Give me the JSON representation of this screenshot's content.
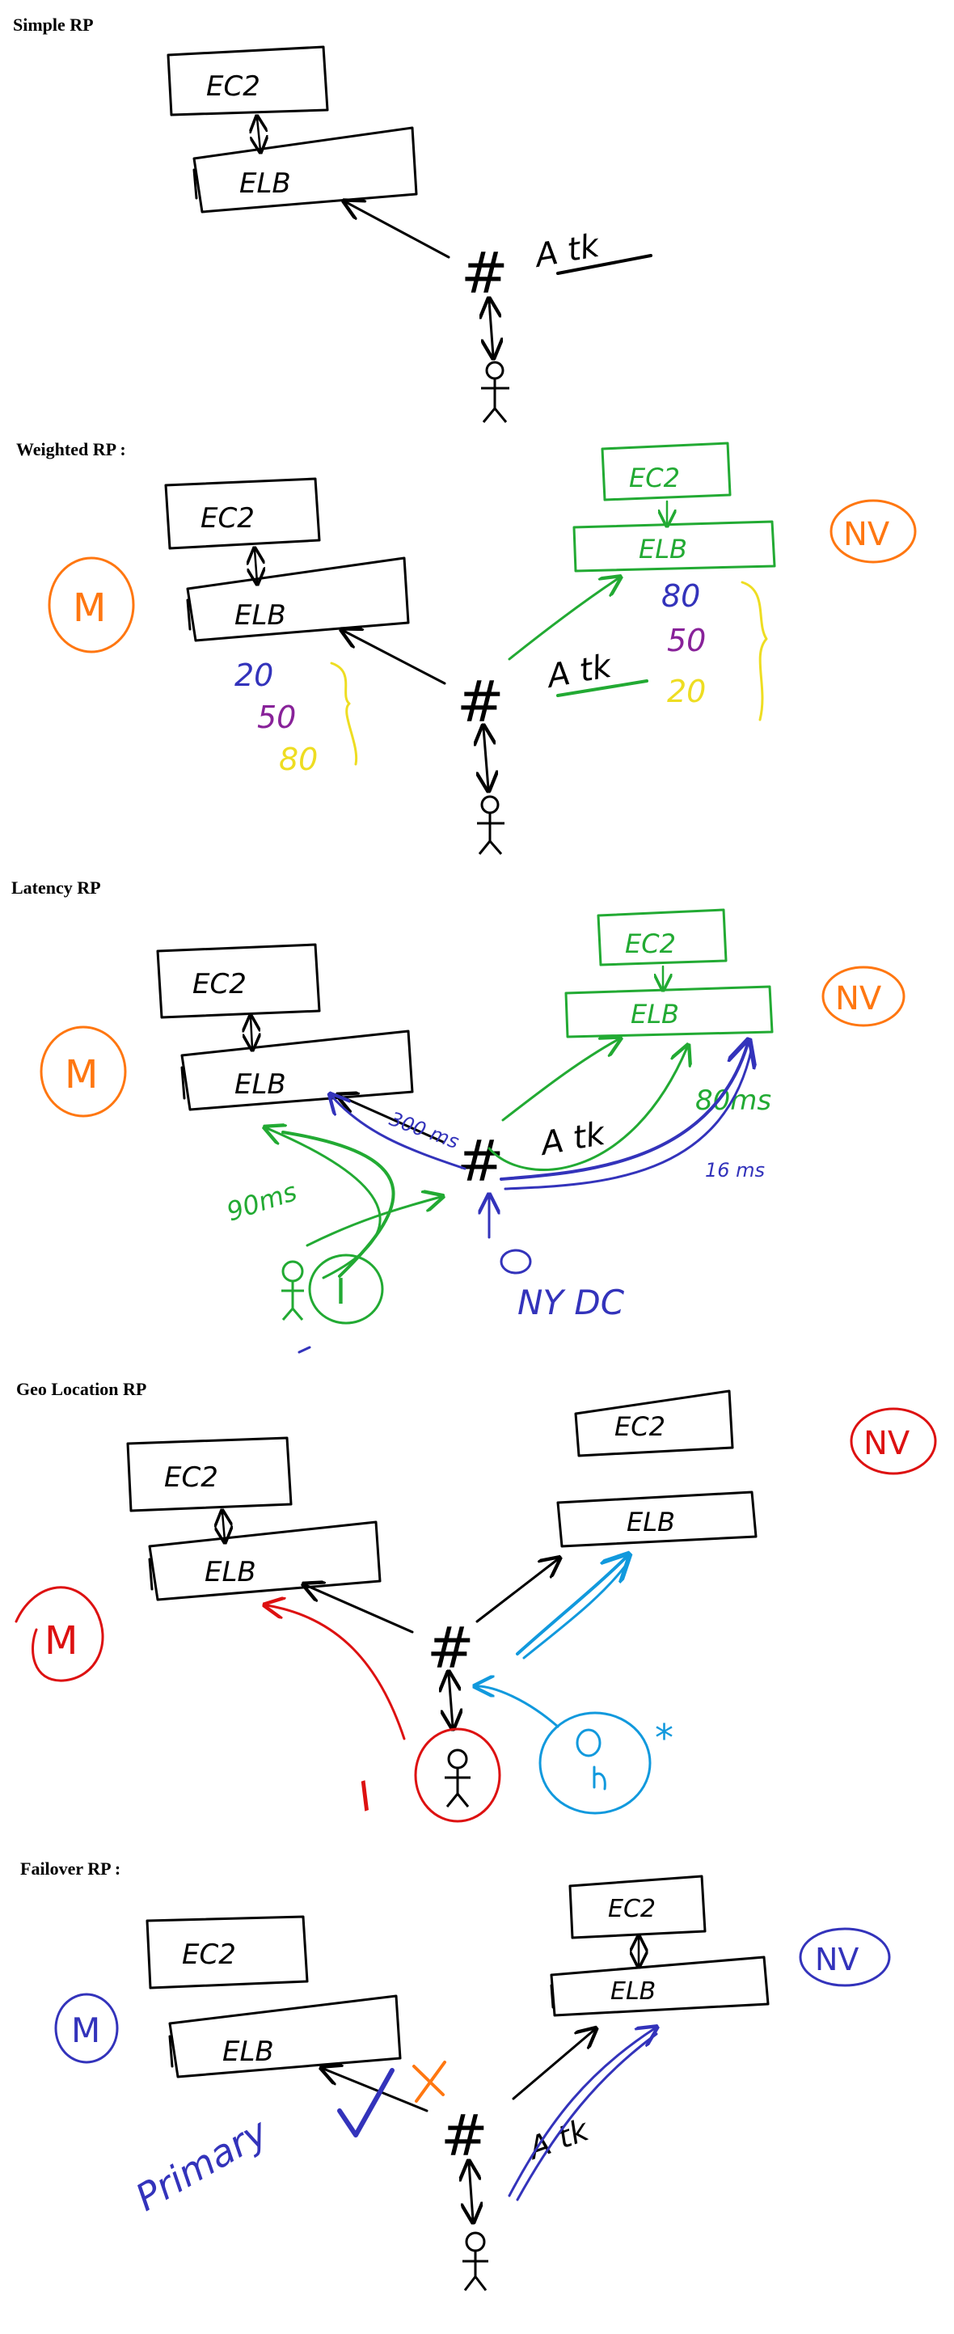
{
  "sections": [
    {
      "title": "Simple RP"
    },
    {
      "title": "Weighted RP :"
    },
    {
      "title": "Latency RP"
    },
    {
      "title": "Geo Location RP"
    },
    {
      "title": "Failover RP :"
    }
  ],
  "labels": {
    "ec2": "EC2",
    "elb": "ELB",
    "hash": "#",
    "attack": "A tk",
    "region_m": "M",
    "region_nv": "NV",
    "region_i": "I",
    "weight_20": "20",
    "weight_50": "50",
    "weight_80": "80",
    "latency_300ms": "300 ms",
    "latency_90ms": "90ms",
    "latency_80ms": "80ms",
    "latency_16ms": "16 ms",
    "nyc_dc": "NY DC",
    "primary": "Primary",
    "star": "*"
  },
  "colors": {
    "ink": "#000000",
    "green": "#22aa33",
    "blue": "#3333bb",
    "purple": "#882299",
    "yellow": "#eedd22",
    "orange": "#ff7711",
    "red": "#dd1111",
    "cyan": "#1199dd"
  }
}
